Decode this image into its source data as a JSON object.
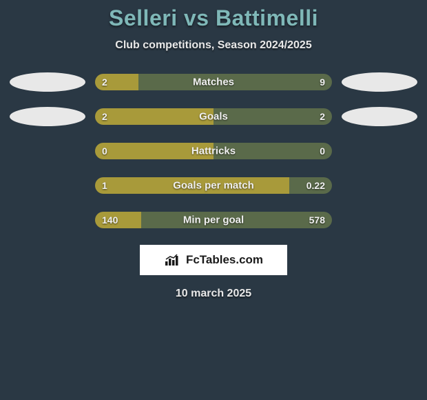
{
  "title": "Selleri vs Battimelli",
  "subtitle": "Club competitions, Season 2024/2025",
  "date": "10 march 2025",
  "brand": "FcTables.com",
  "colors": {
    "background": "#2a3844",
    "title": "#7fb8b8",
    "text": "#e8e8e8",
    "bar_left": "#a89a3a",
    "bar_right": "#5a6a4a",
    "ellipse": "#e8e8e8",
    "brand_bg": "#ffffff"
  },
  "stats": [
    {
      "label": "Matches",
      "left_value": "2",
      "right_value": "9",
      "left_pct": 18.2,
      "show_ellipses": true
    },
    {
      "label": "Goals",
      "left_value": "2",
      "right_value": "2",
      "left_pct": 50,
      "show_ellipses": true
    },
    {
      "label": "Hattricks",
      "left_value": "0",
      "right_value": "0",
      "left_pct": 50,
      "show_ellipses": false
    },
    {
      "label": "Goals per match",
      "left_value": "1",
      "right_value": "0.22",
      "left_pct": 82,
      "show_ellipses": false
    },
    {
      "label": "Min per goal",
      "left_value": "140",
      "right_value": "578",
      "left_pct": 19.5,
      "show_ellipses": false
    }
  ]
}
